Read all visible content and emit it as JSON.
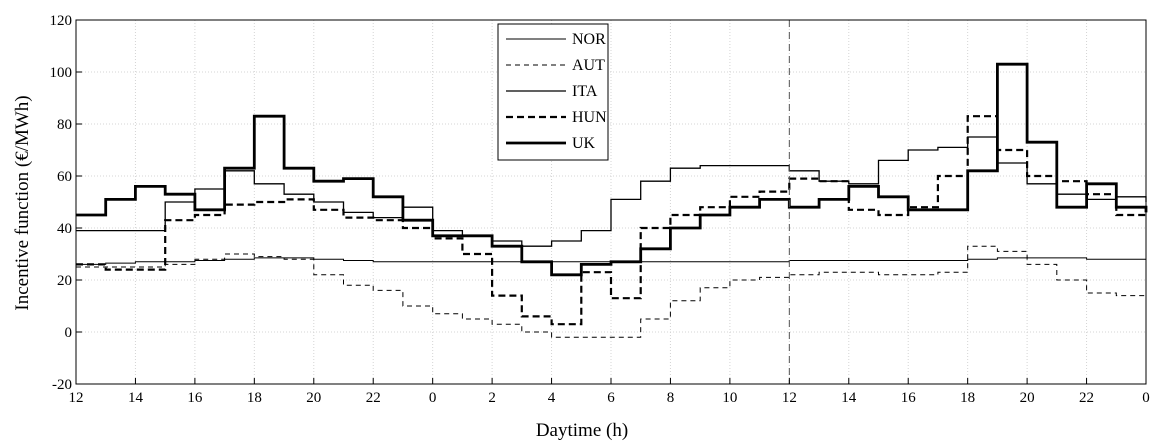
{
  "chart_data": {
    "type": "line",
    "step": true,
    "xlabel": "Daytime (h)",
    "ylabel": "Incentive function (€/MWh)",
    "ylim": [
      -20,
      120
    ],
    "yticks": [
      -20,
      0,
      20,
      40,
      60,
      80,
      100,
      120
    ],
    "xlim": [
      0,
      36
    ],
    "xtick_labels": [
      "12",
      "14",
      "16",
      "18",
      "20",
      "22",
      "0",
      "2",
      "4",
      "6",
      "8",
      "10",
      "12",
      "14",
      "16",
      "18",
      "20",
      "22",
      "0"
    ],
    "xtick_hours": [
      0,
      2,
      4,
      6,
      8,
      10,
      12,
      14,
      16,
      18,
      20,
      22,
      24,
      26,
      28,
      30,
      32,
      34,
      36
    ],
    "vline_hour": 24,
    "grid": true,
    "legend": "top-center",
    "series": [
      {
        "name": "NOR",
        "style": "thin-solid",
        "values": [
          26,
          26.5,
          27,
          27,
          27.5,
          28,
          28.5,
          28.5,
          28,
          27.5,
          27,
          27,
          27,
          27,
          27,
          27,
          27,
          27,
          27,
          27,
          27,
          27,
          27,
          27,
          27.5,
          27.5,
          27.5,
          27.5,
          27.5,
          27.5,
          28,
          28.5,
          28.5,
          28.5,
          28,
          28,
          27.5
        ]
      },
      {
        "name": "AUT",
        "style": "thin-dashed",
        "values": [
          25,
          25,
          25,
          26,
          28,
          30,
          29,
          28,
          22,
          18,
          16,
          10,
          7,
          5,
          3,
          0,
          -2,
          -2,
          -2,
          5,
          12,
          17,
          20,
          21,
          22,
          23,
          23,
          22,
          22,
          23,
          33,
          31,
          26,
          20,
          15,
          14,
          11
        ]
      },
      {
        "name": "ITA",
        "style": "medium-solid",
        "values": [
          39,
          39,
          39,
          50,
          55,
          62,
          57,
          53,
          50,
          46,
          44,
          48,
          39,
          37,
          35,
          33,
          35,
          39,
          51,
          58,
          63,
          64,
          64,
          64,
          62,
          58,
          57,
          66,
          70,
          71,
          75,
          65,
          57,
          53,
          51,
          52,
          50
        ]
      },
      {
        "name": "HUN",
        "style": "thick-dashed",
        "values": [
          26,
          24,
          24,
          43,
          45,
          49,
          50,
          51,
          47,
          44,
          43,
          40,
          36,
          30,
          14,
          6,
          3,
          23,
          13,
          40,
          45,
          48,
          52,
          54,
          59,
          58,
          47,
          45,
          48,
          60,
          83,
          70,
          60,
          58,
          53,
          45,
          44
        ]
      },
      {
        "name": "UK",
        "style": "thick-solid",
        "values": [
          45,
          51,
          56,
          53,
          47,
          63,
          83,
          63,
          58,
          59,
          52,
          43,
          37,
          37,
          33,
          27,
          22,
          26,
          27,
          32,
          40,
          45,
          48,
          51,
          48,
          51,
          56,
          52,
          47,
          47,
          62,
          103,
          73,
          48,
          57,
          48,
          46
        ]
      }
    ]
  }
}
